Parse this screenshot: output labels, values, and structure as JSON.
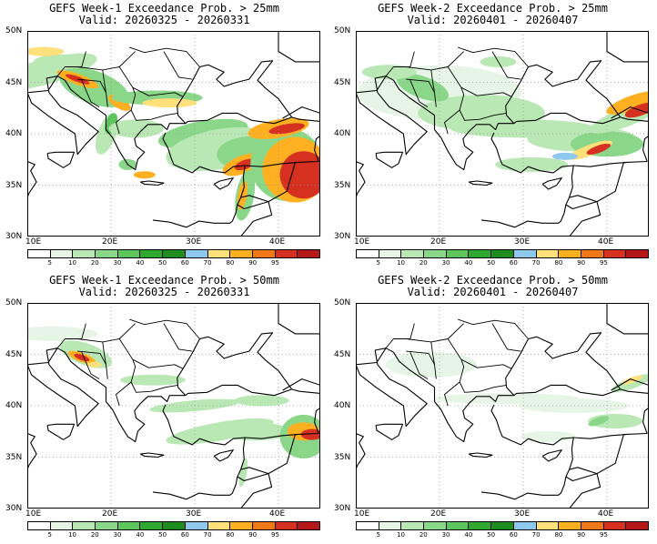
{
  "figure": {
    "colorbar": {
      "levels": [
        "5",
        "10",
        "20",
        "30",
        "40",
        "50",
        "60",
        "70",
        "80",
        "90",
        "95"
      ],
      "colors": [
        "#ffffff",
        "#e6f5e6",
        "#b9e8b4",
        "#8ad78a",
        "#5cc65c",
        "#2ea82e",
        "#1e8c1e",
        "#8ec8ef",
        "#ffe07a",
        "#ffb020",
        "#f07818",
        "#d63020",
        "#b41818"
      ]
    },
    "lat_labels": [
      "50N",
      "45N",
      "40N",
      "35N",
      "30N"
    ],
    "lon_labels": [
      "10E",
      "20E",
      "30E",
      "40E"
    ],
    "panels": [
      {
        "title": "GEFS Week-1 Exceedance Prob. > 25mm",
        "valid": "Valid: 20260325 - 20260331"
      },
      {
        "title": "GEFS Week-2 Exceedance Prob. > 25mm",
        "valid": "Valid: 20260401 - 20260407"
      },
      {
        "title": "GEFS Week-1 Exceedance Prob. > 50mm",
        "valid": "Valid: 20260325 - 20260331"
      },
      {
        "title": "GEFS Week-2 Exceedance Prob. > 50mm",
        "valid": "Valid: 20260401 - 20260407"
      }
    ]
  }
}
